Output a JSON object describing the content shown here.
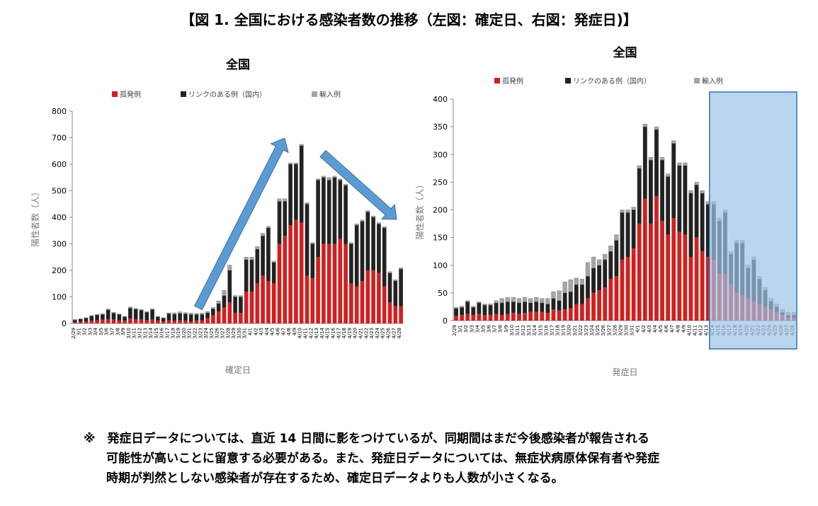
{
  "figure_title": "【図 1. 全国における感染者数の推移（左図：確定日、右図：発症日)】",
  "footnote": {
    "line1": "※　発症日データについては、直近 14 日間に影をつけているが、同期間はまだ今後感染者が報告される",
    "line2": "可能性が高いことに留意する必要がある。また、発症日データについては、無症状病原体保有者や発症",
    "line3": "時期が判然としない感染者が存在するため、確定日データよりも人数が小さくなる。"
  },
  "colors": {
    "sporadic": "#d21f1f",
    "linked": "#222222",
    "imported": "#a6a6a6",
    "shade": "#9dc3e6",
    "shade_border": "#2e75b6",
    "arrow": "#5b9bd5"
  },
  "chart_data": [
    {
      "type": "bar",
      "stacked": true,
      "title": "全国",
      "xlabel": "確定日",
      "ylabel": "陽性者数（人）",
      "ylim": [
        0,
        800
      ],
      "yticks": [
        0,
        100,
        200,
        300,
        400,
        500,
        600,
        700,
        800
      ],
      "legend": [
        "孤発例",
        "リンクのある例（国内）",
        "輸入例"
      ],
      "legend_position": "top",
      "annotations": [
        "upward arrow (rising trend)",
        "downward arrow (declining trend)"
      ],
      "categories": [
        "2/29",
        "3/1",
        "3/2",
        "3/3",
        "3/4",
        "3/5",
        "3/6",
        "3/7",
        "3/8",
        "3/9",
        "3/10",
        "3/11",
        "3/12",
        "3/13",
        "3/14",
        "3/15",
        "3/16",
        "3/17",
        "3/18",
        "3/19",
        "3/20",
        "3/21",
        "3/22",
        "3/23",
        "3/24",
        "3/25",
        "3/26",
        "3/27",
        "3/28",
        "3/29",
        "3/30",
        "3/31",
        "4/1",
        "4/2",
        "4/3",
        "4/4",
        "4/5",
        "4/6",
        "4/7",
        "4/8",
        "4/9",
        "4/10",
        "4/11",
        "4/12",
        "4/13",
        "4/14",
        "4/15",
        "4/16",
        "4/17",
        "4/18",
        "4/19",
        "4/20",
        "4/21",
        "4/22",
        "4/23",
        "4/24",
        "4/25",
        "4/26",
        "4/27",
        "4/28"
      ],
      "series": [
        {
          "name": "孤発例",
          "values": [
            5,
            6,
            8,
            10,
            12,
            14,
            16,
            14,
            12,
            10,
            18,
            16,
            14,
            12,
            16,
            10,
            8,
            12,
            10,
            12,
            10,
            8,
            10,
            12,
            20,
            30,
            45,
            60,
            80,
            40,
            40,
            120,
            120,
            150,
            180,
            160,
            150,
            300,
            330,
            370,
            390,
            380,
            180,
            170,
            250,
            300,
            300,
            300,
            320,
            300,
            150,
            140,
            160,
            200,
            200,
            190,
            140,
            80,
            65,
            65
          ]
        },
        {
          "name": "リンクのある例（国内）",
          "values": [
            8,
            10,
            12,
            18,
            20,
            20,
            35,
            25,
            22,
            15,
            40,
            38,
            36,
            30,
            36,
            15,
            12,
            25,
            25,
            26,
            26,
            26,
            24,
            22,
            20,
            25,
            30,
            45,
            120,
            60,
            60,
            120,
            120,
            130,
            150,
            200,
            80,
            160,
            130,
            230,
            210,
            290,
            270,
            130,
            290,
            250,
            240,
            250,
            220,
            220,
            150,
            230,
            225,
            220,
            200,
            185,
            220,
            110,
            95,
            140
          ]
        },
        {
          "name": "輸入例",
          "values": [
            2,
            2,
            2,
            2,
            2,
            3,
            4,
            3,
            2,
            2,
            4,
            3,
            3,
            3,
            3,
            2,
            2,
            3,
            5,
            6,
            5,
            5,
            4,
            5,
            5,
            5,
            10,
            20,
            20,
            5,
            5,
            10,
            10,
            10,
            10,
            6,
            5,
            10,
            10,
            5,
            5,
            5,
            5,
            5,
            5,
            5,
            10,
            5,
            5,
            5,
            5,
            5,
            5,
            5,
            5,
            5,
            5,
            5,
            5,
            5
          ]
        }
      ]
    },
    {
      "type": "bar",
      "stacked": true,
      "title": "全国",
      "xlabel": "発症日",
      "ylabel": "陽性者数（人）",
      "ylim": [
        0,
        400
      ],
      "yticks": [
        0,
        50,
        100,
        150,
        200,
        250,
        300,
        350,
        400
      ],
      "legend": [
        "孤発例",
        "リンクのある例（国内）",
        "輸入例"
      ],
      "legend_position": "top",
      "shaded_range": [
        "4/14",
        "4/27"
      ],
      "categories": [
        "2/29",
        "3/1",
        "3/2",
        "3/3",
        "3/4",
        "3/5",
        "3/6",
        "3/7",
        "3/8",
        "3/9",
        "3/10",
        "3/11",
        "3/12",
        "3/13",
        "3/14",
        "3/15",
        "3/16",
        "3/17",
        "3/18",
        "3/19",
        "3/20",
        "3/21",
        "3/22",
        "3/23",
        "3/24",
        "3/25",
        "3/26",
        "3/27",
        "3/28",
        "3/29",
        "3/30",
        "3/31",
        "4/1",
        "4/2",
        "4/3",
        "4/4",
        "4/5",
        "4/6",
        "4/7",
        "4/8",
        "4/9",
        "4/10",
        "4/11",
        "4/12",
        "4/13",
        "4/14",
        "4/15",
        "4/16",
        "4/17",
        "4/18",
        "4/19",
        "4/20",
        "4/21",
        "4/22",
        "4/23",
        "4/24",
        "4/25",
        "4/26",
        "4/27",
        "4/28"
      ],
      "series": [
        {
          "name": "孤発例",
          "values": [
            8,
            10,
            12,
            10,
            12,
            10,
            10,
            12,
            10,
            12,
            14,
            12,
            14,
            16,
            16,
            16,
            14,
            20,
            18,
            20,
            22,
            30,
            30,
            40,
            50,
            55,
            60,
            75,
            80,
            110,
            115,
            130,
            175,
            220,
            175,
            225,
            180,
            155,
            185,
            160,
            155,
            115,
            150,
            125,
            115,
            110,
            85,
            85,
            65,
            50,
            45,
            40,
            35,
            30,
            25,
            20,
            15,
            10,
            5,
            5
          ]
        },
        {
          "name": "リンクのある例（国内）",
          "values": [
            14,
            14,
            22,
            14,
            20,
            18,
            18,
            20,
            22,
            22,
            20,
            20,
            20,
            16,
            18,
            16,
            16,
            20,
            18,
            30,
            30,
            35,
            35,
            40,
            45,
            45,
            50,
            50,
            65,
            85,
            80,
            70,
            100,
            130,
            115,
            120,
            110,
            105,
            135,
            120,
            125,
            115,
            95,
            105,
            95,
            100,
            95,
            110,
            55,
            90,
            95,
            55,
            75,
            45,
            30,
            15,
            10,
            5,
            5,
            5
          ]
        },
        {
          "name": "輸入例",
          "values": [
            2,
            2,
            2,
            2,
            2,
            2,
            2,
            4,
            8,
            8,
            8,
            8,
            8,
            8,
            8,
            8,
            10,
            12,
            18,
            20,
            22,
            12,
            10,
            25,
            20,
            10,
            10,
            10,
            10,
            5,
            5,
            5,
            5,
            5,
            5,
            5,
            5,
            5,
            5,
            5,
            5,
            5,
            5,
            5,
            5,
            5,
            5,
            5,
            5,
            5,
            5,
            5,
            5,
            5,
            5,
            5,
            5,
            5,
            5,
            5
          ]
        }
      ]
    }
  ]
}
